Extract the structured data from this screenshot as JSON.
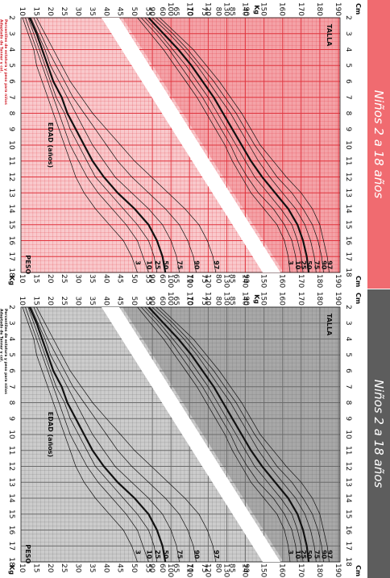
{
  "panels": [
    {
      "banner_title": "Niños 2 a 18 años",
      "banner_color": "#f06b70",
      "grid_color": "#e0343e",
      "bg_light": "#f9c9cc",
      "bg_dark": "#f4a2a7",
      "source_color": "#d0202a"
    },
    {
      "banner_title": "Niños 2 a 18 años",
      "banner_color": "#5d5d5d",
      "grid_color": "#6b6b6b",
      "bg_light": "#cccccc",
      "bg_dark": "#a8a8a8",
      "source_color": "#111111"
    }
  ],
  "labels": {
    "talla": "TALLA",
    "peso": "PESO",
    "edad": "EDAD (años)",
    "cm": "Cm",
    "kg": "Kg",
    "source_lines": [
      "Percentiles de estatura y peso para niños",
      "Adaptado de Tanner y col.",
      "Fuente: datos de referencia"
    ]
  },
  "chart_data": {
    "type": "line",
    "x": [
      2,
      3,
      4,
      5,
      6,
      7,
      8,
      9,
      10,
      11,
      12,
      13,
      14,
      15,
      16,
      17,
      18
    ],
    "xlim": [
      2,
      18
    ],
    "x_ticks": [
      2,
      3,
      4,
      5,
      6,
      7,
      8,
      9,
      10,
      11,
      12,
      13,
      14,
      15,
      16,
      17,
      18
    ],
    "height_ylim": [
      80,
      190
    ],
    "height_ticks": [
      90,
      100,
      110,
      120,
      130,
      140,
      150,
      160,
      170,
      180,
      190
    ],
    "weight_ylim": [
      10,
      90
    ],
    "weight_ticks": [
      10,
      15,
      20,
      25,
      30,
      35,
      40,
      45,
      50,
      55,
      60,
      65,
      70,
      75,
      80,
      85,
      90
    ],
    "height_series": [
      {
        "name": "3",
        "values": [
          82,
          89,
          96,
          102,
          108,
          114,
          119,
          124,
          129,
          133,
          138,
          143,
          150,
          157,
          161,
          163,
          164
        ]
      },
      {
        "name": "10",
        "values": [
          84,
          92,
          99,
          105,
          111,
          117,
          122,
          127,
          132,
          136,
          141,
          147,
          155,
          161,
          165,
          167,
          168
        ]
      },
      {
        "name": "25",
        "values": [
          86,
          94,
          101,
          108,
          114,
          120,
          125,
          130,
          135,
          140,
          145,
          152,
          159,
          165,
          168,
          170,
          171
        ]
      },
      {
        "name": "50",
        "values": [
          88,
          96,
          104,
          111,
          117,
          123,
          128,
          133,
          138,
          143,
          149,
          156,
          163,
          168,
          171,
          173,
          174
        ]
      },
      {
        "name": "75",
        "values": [
          90,
          99,
          107,
          114,
          120,
          126,
          132,
          137,
          142,
          147,
          153,
          160,
          167,
          172,
          175,
          177,
          178
        ]
      },
      {
        "name": "90",
        "values": [
          92,
          101,
          109,
          116,
          123,
          129,
          135,
          140,
          145,
          151,
          157,
          165,
          171,
          176,
          179,
          181,
          182
        ]
      },
      {
        "name": "97",
        "values": [
          94,
          103,
          112,
          119,
          126,
          132,
          138,
          143,
          148,
          155,
          162,
          170,
          176,
          180,
          182,
          184,
          185
        ]
      }
    ],
    "weight_series": [
      {
        "name": "3",
        "values": [
          10,
          12,
          14,
          15,
          17,
          19,
          21,
          23,
          25,
          27,
          29,
          32,
          36,
          41,
          46,
          49,
          51
        ]
      },
      {
        "name": "10",
        "values": [
          11,
          13,
          15,
          17,
          19,
          21,
          23,
          25,
          27,
          30,
          33,
          37,
          42,
          47,
          51,
          53,
          55
        ]
      },
      {
        "name": "25",
        "values": [
          12,
          14,
          16,
          18,
          20,
          22,
          25,
          27,
          30,
          33,
          36,
          41,
          46,
          51,
          55,
          57,
          58
        ]
      },
      {
        "name": "50",
        "values": [
          12.5,
          15,
          17,
          19,
          21,
          24,
          26,
          29,
          32,
          35,
          39,
          44,
          50,
          55,
          58,
          60,
          61
        ]
      },
      {
        "name": "75",
        "values": [
          13,
          15.5,
          18,
          20,
          23,
          26,
          29,
          32,
          35,
          39,
          43,
          49,
          55,
          60,
          63,
          65,
          66
        ]
      },
      {
        "name": "90",
        "values": [
          14,
          16.5,
          19,
          22,
          25,
          28,
          32,
          36,
          40,
          44,
          49,
          55,
          61,
          66,
          69,
          71,
          72
        ]
      },
      {
        "name": "97",
        "values": [
          15,
          18,
          21,
          24,
          27,
          31,
          35,
          40,
          45,
          50,
          56,
          62,
          68,
          73,
          76,
          78,
          79
        ]
      }
    ]
  }
}
